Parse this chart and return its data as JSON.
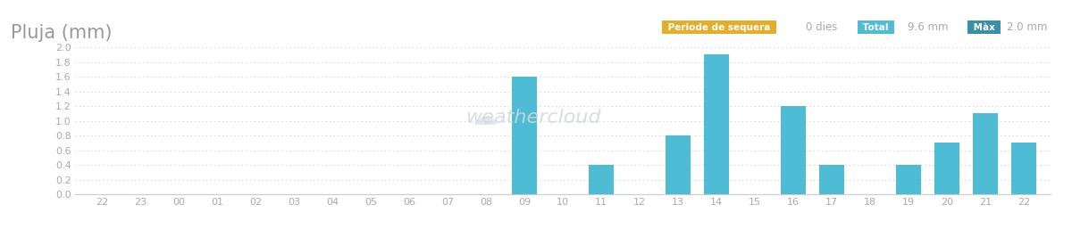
{
  "title": "Pluja (mm)",
  "title_color": "#999999",
  "title_fontsize": 15,
  "x_labels": [
    "22",
    "23",
    "00",
    "01",
    "02",
    "03",
    "04",
    "05",
    "06",
    "07",
    "08",
    "09",
    "10",
    "11",
    "12",
    "13",
    "14",
    "15",
    "16",
    "17",
    "18",
    "19",
    "20",
    "21",
    "22"
  ],
  "values": [
    0,
    0,
    0,
    0,
    0,
    0,
    0,
    0,
    0,
    0,
    0,
    1.6,
    0,
    0.4,
    0,
    0.8,
    1.9,
    0,
    1.2,
    0.4,
    0,
    0.4,
    0.7,
    1.1,
    0.7
  ],
  "bar_color": "#4dbcd4",
  "bar_width": 0.65,
  "ylim": [
    0,
    2.0
  ],
  "yticks": [
    0.0,
    0.2,
    0.4,
    0.6,
    0.8,
    1.0,
    1.2,
    1.4,
    1.6,
    1.8,
    2.0
  ],
  "grid_color": "#cccccc",
  "bg_color": "#ffffff",
  "axis_label_color": "#aaaaaa",
  "legend_label": "Total",
  "legend_badge_color": "#4dbcd4",
  "badge1_label": "Periode de sequera",
  "badge1_color": "#e6ad2a",
  "badge1_text_color": "#ffffff",
  "badge1_value": "0 dies",
  "badge2_label": "Total",
  "badge2_color": "#4dbcd4",
  "badge2_text_color": "#ffffff",
  "badge2_value": "9.6 mm",
  "badge3_label": "Màx",
  "badge3_color": "#3a8fa8",
  "badge3_text_color": "#ffffff",
  "badge3_value": "2.0 mm",
  "watermark": "weathercloud",
  "figsize": [
    12.0,
    2.66
  ],
  "dpi": 100
}
